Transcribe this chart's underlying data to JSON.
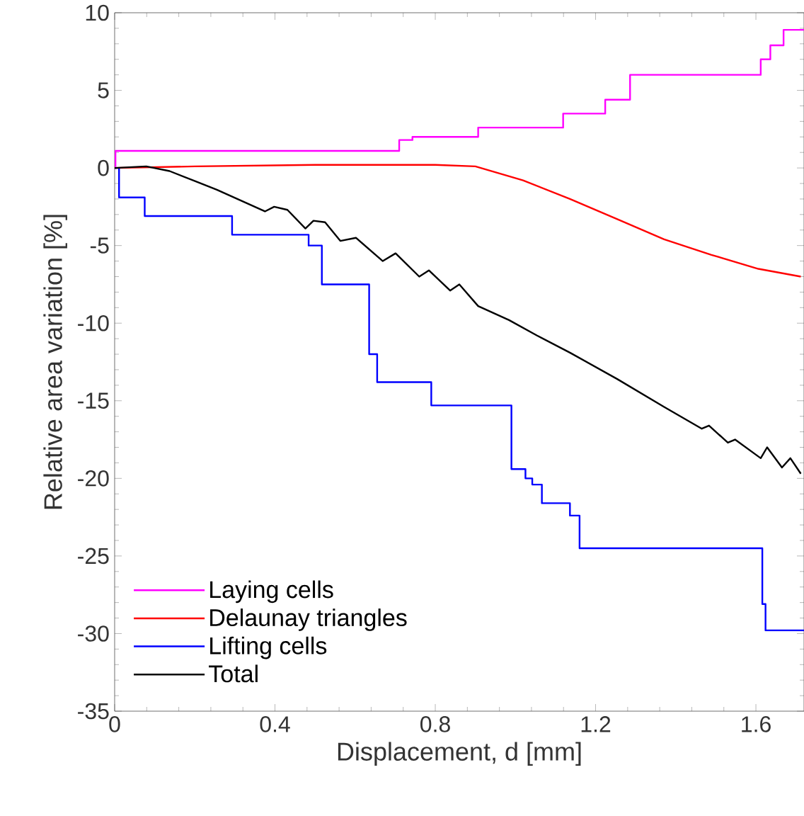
{
  "chart_data": {
    "type": "line",
    "xlabel": "Displacement, d [mm]",
    "ylabel": "Relative area variation [%]",
    "xlim": [
      0,
      1.72
    ],
    "ylim": [
      -35,
      10
    ],
    "xticks": [
      0,
      0.4,
      0.8,
      1.2,
      1.6
    ],
    "yticks": [
      -35,
      -30,
      -25,
      -20,
      -15,
      -10,
      -5,
      0,
      5,
      10
    ],
    "legend": "bottom left",
    "series": [
      {
        "name": "Laying cells",
        "type": "step",
        "color": "#ff00ff",
        "x": [
          0,
          0.002,
          0.71,
          0.743,
          0.907,
          1.119,
          1.224,
          1.286,
          1.612,
          1.636,
          1.669,
          1.72
        ],
        "values": [
          0,
          1.1,
          1.8,
          2.0,
          2.6,
          3.5,
          4.4,
          6.0,
          7.0,
          7.9,
          8.9,
          8.9
        ]
      },
      {
        "name": "Delaunay triangles",
        "color": "#ff0000",
        "x": [
          0,
          0.2,
          0.5,
          0.8,
          0.9,
          1.019,
          1.136,
          1.254,
          1.371,
          1.489,
          1.606,
          1.712
        ],
        "values": [
          0,
          0.1,
          0.2,
          0.2,
          0.1,
          -0.8,
          -2.0,
          -3.3,
          -4.6,
          -5.6,
          -6.5,
          -7.0
        ]
      },
      {
        "name": "Lifting cells",
        "type": "step",
        "color": "#0000ff",
        "x": [
          0,
          0.011,
          0.075,
          0.293,
          0.484,
          0.517,
          0.635,
          0.655,
          0.79,
          0.99,
          1.025,
          1.042,
          1.066,
          1.136,
          1.16,
          1.616,
          1.624,
          1.72
        ],
        "values": [
          0,
          -1.9,
          -3.1,
          -4.3,
          -5.0,
          -7.5,
          -12.0,
          -13.8,
          -15.3,
          -19.4,
          -20.0,
          -20.4,
          -21.6,
          -22.4,
          -24.5,
          -28.1,
          -29.8,
          -29.8
        ]
      },
      {
        "name": "Total",
        "color": "#000000",
        "x": [
          0,
          0.079,
          0.137,
          0.255,
          0.375,
          0.398,
          0.431,
          0.476,
          0.496,
          0.525,
          0.563,
          0.602,
          0.669,
          0.701,
          0.76,
          0.784,
          0.837,
          0.86,
          0.907,
          0.984,
          1.054,
          1.136,
          1.254,
          1.371,
          1.465,
          1.483,
          1.53,
          1.548,
          1.612,
          1.628,
          1.665,
          1.686,
          1.712
        ],
        "values": [
          0,
          0.1,
          -0.2,
          -1.4,
          -2.8,
          -2.5,
          -2.7,
          -3.9,
          -3.4,
          -3.5,
          -4.7,
          -4.5,
          -6.0,
          -5.5,
          -7.0,
          -6.6,
          -7.9,
          -7.5,
          -8.9,
          -9.8,
          -10.8,
          -11.9,
          -13.6,
          -15.4,
          -16.8,
          -16.6,
          -17.7,
          -17.5,
          -18.7,
          -18.0,
          -19.3,
          -18.7,
          -19.7
        ]
      }
    ]
  }
}
